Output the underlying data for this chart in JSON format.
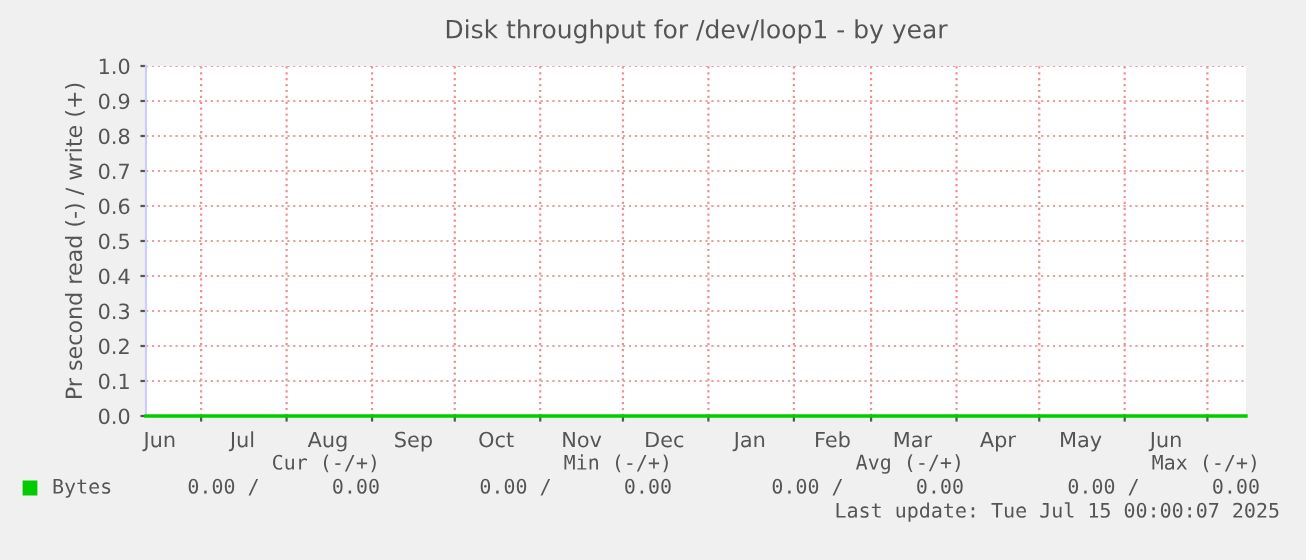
{
  "chart_data": {
    "type": "line",
    "title": "Disk throughput for /dev/loop1 - by year",
    "ylabel": "Pr second read (-) / write (+)",
    "series": [
      {
        "name": "Bytes",
        "color": "#00cc00",
        "x": [
          "2024-06-11",
          "2025-07-15"
        ],
        "values": [
          0,
          0
        ]
      }
    ],
    "xlim": [
      "2024-06-11",
      "2025-07-15"
    ],
    "xticks": [
      {
        "value": "2024-06-16",
        "label": "Jun"
      },
      {
        "value": "2024-07-01",
        "label": null
      },
      {
        "value": "2024-07-16",
        "label": "Jul"
      },
      {
        "value": "2024-08-01",
        "label": null
      },
      {
        "value": "2024-08-16",
        "label": "Aug"
      },
      {
        "value": "2024-09-01",
        "label": null
      },
      {
        "value": "2024-09-16",
        "label": "Sep"
      },
      {
        "value": "2024-10-01",
        "label": null
      },
      {
        "value": "2024-10-16",
        "label": "Oct"
      },
      {
        "value": "2024-11-01",
        "label": null
      },
      {
        "value": "2024-11-16",
        "label": "Nov"
      },
      {
        "value": "2024-12-01",
        "label": null
      },
      {
        "value": "2024-12-16",
        "label": "Dec"
      },
      {
        "value": "2025-01-01",
        "label": null
      },
      {
        "value": "2025-01-16",
        "label": "Jan"
      },
      {
        "value": "2025-02-01",
        "label": null
      },
      {
        "value": "2025-02-15",
        "label": "Feb"
      },
      {
        "value": "2025-03-01",
        "label": null
      },
      {
        "value": "2025-03-16",
        "label": "Mar"
      },
      {
        "value": "2025-04-01",
        "label": null
      },
      {
        "value": "2025-04-16",
        "label": "Apr"
      },
      {
        "value": "2025-05-01",
        "label": null
      },
      {
        "value": "2025-05-16",
        "label": "May"
      },
      {
        "value": "2025-06-01",
        "label": null
      },
      {
        "value": "2025-06-16",
        "label": "Jun"
      },
      {
        "value": "2025-07-01",
        "label": null
      }
    ],
    "ylim": [
      0,
      1
    ],
    "yticks": [
      {
        "value": 0,
        "label": "0.0"
      },
      0.1,
      0.2,
      0.3,
      0.4,
      0.5,
      0.6,
      0.7,
      0.8,
      0.9,
      {
        "value": 1,
        "label": "1.0"
      }
    ],
    "grid": true,
    "legend": "bottom left",
    "marker": "none",
    "line_style": "solid",
    "annotations": [
      "Cur (-/+)",
      "Min (-/+)",
      "Avg (-/+)",
      "Max (-/+)",
      "0.00 /      0.00",
      "0.00 /      0.00",
      "0.00 /      0.00",
      "0.00 /      0.00",
      "Last update: Tue Jul 15 00:00:07 2025"
    ]
  }
}
